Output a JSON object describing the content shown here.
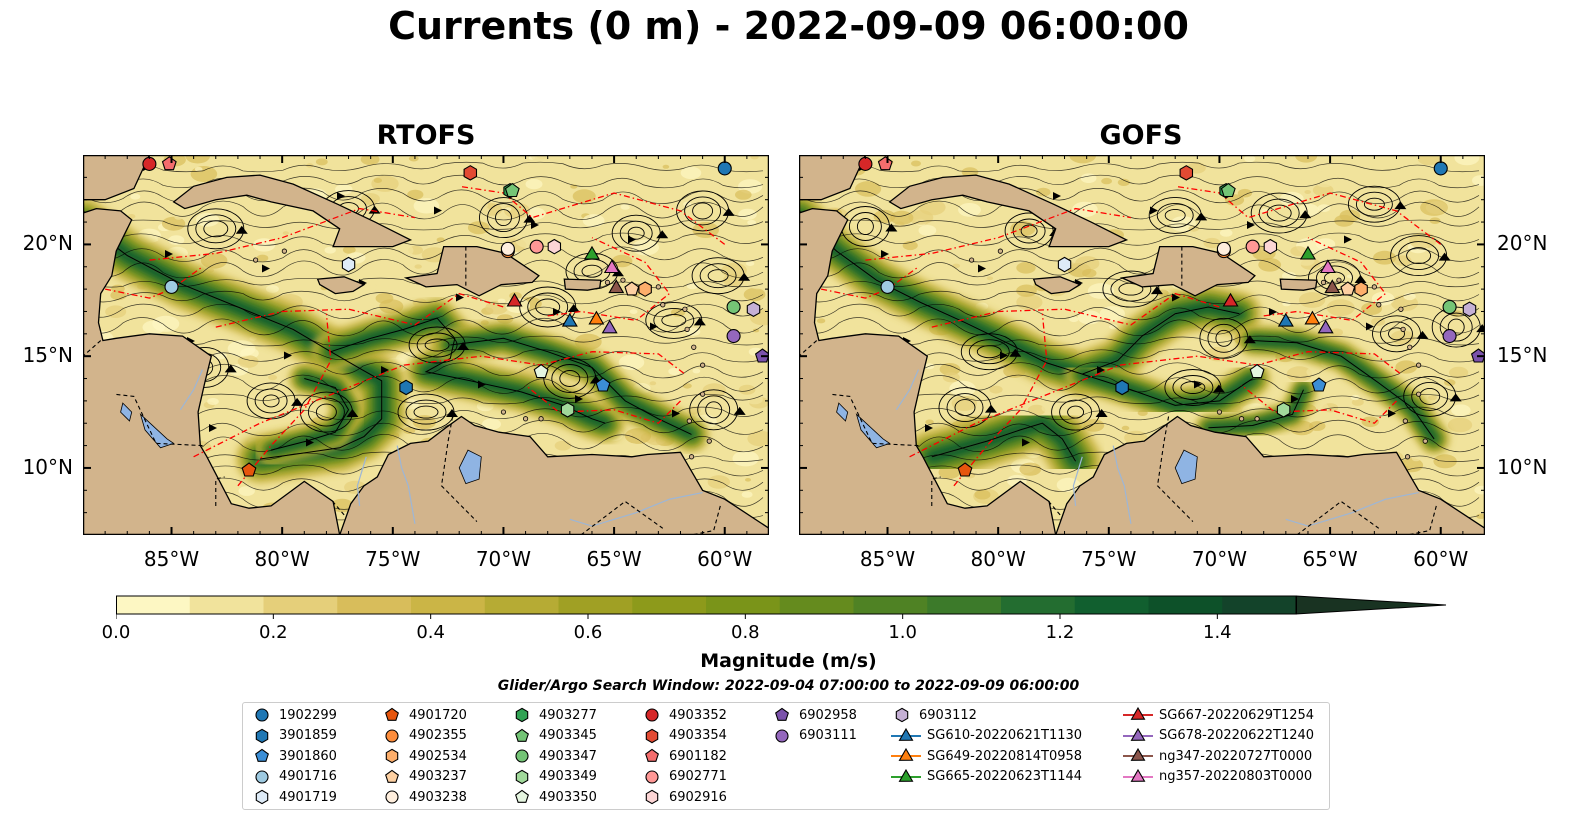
{
  "title": "Currents (0 m) - 2022-09-09 06:00:00",
  "chart_data": {
    "type": "heatmap",
    "title": "Currents (0 m) - 2022-09-09 06:00:00",
    "panels": [
      {
        "name": "RTOFS"
      },
      {
        "name": "GOFS"
      }
    ],
    "lon_range": [
      -89,
      -58
    ],
    "lat_range": [
      7,
      24
    ],
    "lon_ticks": [
      -85,
      -80,
      -75,
      -70,
      -65,
      -60
    ],
    "lon_tick_labels": [
      "85°W",
      "80°W",
      "75°W",
      "70°W",
      "65°W",
      "60°W"
    ],
    "lat_ticks": [
      10,
      15,
      20
    ],
    "lat_tick_labels": [
      "10°N",
      "15°N",
      "20°N"
    ],
    "colorbar": {
      "label": "Magnitude (m/s)",
      "range": [
        0,
        1.5
      ],
      "ticks": [
        0.0,
        0.2,
        0.4,
        0.6,
        0.8,
        1.0,
        1.2,
        1.4
      ],
      "tick_labels": [
        "0.0",
        "0.2",
        "0.4",
        "0.6",
        "0.8",
        "1.0",
        "1.2",
        "1.4"
      ],
      "levels": 16,
      "extend": "max",
      "colors": [
        "#fdf7c3",
        "#f1e39c",
        "#e5cf7a",
        "#d8bd5b",
        "#cbb546",
        "#b6ab34",
        "#a0a024",
        "#8d9a1b",
        "#7a9419",
        "#658b1e",
        "#4f8224",
        "#3c7a2a",
        "#236d30",
        "#115f2f",
        "#0d5129",
        "#13432a",
        "#193322"
      ]
    },
    "search_window": "Glider/Argo Search Window: 2022-09-04 07:00:00 to 2022-09-09 06:00:00",
    "legend_columns": 7,
    "legend": [
      {
        "name": "1902299",
        "marker": "circle",
        "color": "#1f77b4",
        "lon": -60,
        "lat": 23.4
      },
      {
        "name": "3901859",
        "marker": "hexagon",
        "color": "#1f77b4",
        "lon": -74.4,
        "lat": 13.6
      },
      {
        "name": "3901860",
        "marker": "pentagon",
        "color": "#3b8ed6",
        "lon": -65.5,
        "lat": 13.7
      },
      {
        "name": "4901716",
        "marker": "circle",
        "color": "#9ecae1",
        "lon": -85,
        "lat": 18.1
      },
      {
        "name": "4901719",
        "marker": "hexagon",
        "color": "#deebf7",
        "lon": -77,
        "lat": 19.1
      },
      {
        "name": "4901720",
        "marker": "pentagon",
        "color": "#e6550d",
        "lon": -81.5,
        "lat": 9.9
      },
      {
        "name": "4902355",
        "marker": "circle",
        "color": "#fd8d3c",
        "lon": -69.8,
        "lat": 19.7
      },
      {
        "name": "4902534",
        "marker": "hexagon",
        "color": "#fdae6b",
        "lon": -63.6,
        "lat": 18
      },
      {
        "name": "4903237",
        "marker": "pentagon",
        "color": "#fdd0a2",
        "lon": -64.2,
        "lat": 18
      },
      {
        "name": "4903238",
        "marker": "circle",
        "color": "#feeedd",
        "lon": -69.8,
        "lat": 19.8
      },
      {
        "name": "4903277",
        "marker": "hexagon",
        "color": "#31a354",
        "lon": -69.7,
        "lat": 22.4
      },
      {
        "name": "4903345",
        "marker": "pentagon",
        "color": "#74c476",
        "lon": -69.6,
        "lat": 22.4
      },
      {
        "name": "4903347",
        "marker": "circle",
        "color": "#74c476",
        "lon": -59.6,
        "lat": 17.2
      },
      {
        "name": "4903349",
        "marker": "hexagon",
        "color": "#a1d99b",
        "lon": -67.1,
        "lat": 12.6
      },
      {
        "name": "4903350",
        "marker": "pentagon",
        "color": "#e5f5e0",
        "lon": -68.3,
        "lat": 14.3
      },
      {
        "name": "4903352",
        "marker": "circle",
        "color": "#d62728",
        "lon": -86,
        "lat": 23.6
      },
      {
        "name": "4903354",
        "marker": "hexagon",
        "color": "#e34a33",
        "lon": -71.5,
        "lat": 23.2
      },
      {
        "name": "6901182",
        "marker": "pentagon",
        "color": "#f46d6d",
        "lon": -85.1,
        "lat": 23.6
      },
      {
        "name": "6902771",
        "marker": "circle",
        "color": "#ff9896",
        "lon": -68.5,
        "lat": 19.9
      },
      {
        "name": "6902916",
        "marker": "hexagon",
        "color": "#fcd5d5",
        "lon": -67.7,
        "lat": 19.9
      },
      {
        "name": "6902958",
        "marker": "pentagon",
        "color": "#7b52ab",
        "lon": -58.3,
        "lat": 15
      },
      {
        "name": "6903111",
        "marker": "circle",
        "color": "#9467bd",
        "lon": -59.6,
        "lat": 15.9
      },
      {
        "name": "6903112",
        "marker": "hexagon",
        "color": "#c5b0d5",
        "lon": -58.7,
        "lat": 17.1
      },
      {
        "name": "SG610-20220621T1130",
        "marker": "triangle",
        "color": "#1f77b4",
        "lon": -67,
        "lat": 16.6
      },
      {
        "name": "SG649-20220814T0958",
        "marker": "triangle",
        "color": "#ff7f0e",
        "lon": -65.8,
        "lat": 16.7
      },
      {
        "name": "SG665-20220623T1144",
        "marker": "triangle",
        "color": "#2ca02c",
        "lon": -66,
        "lat": 19.6
      },
      {
        "name": "SG667-20220629T1254",
        "marker": "triangle",
        "color": "#d62728",
        "lon": -69.5,
        "lat": 17.5
      },
      {
        "name": "SG678-20220622T1240",
        "marker": "triangle",
        "color": "#9467bd",
        "lon": -65.2,
        "lat": 16.3
      },
      {
        "name": "ng347-20220727T0000",
        "marker": "triangle",
        "color": "#8c564b",
        "lon": -64.9,
        "lat": 18.1
      },
      {
        "name": "ng357-20220803T0000",
        "marker": "triangle",
        "color": "#e377c2",
        "lon": -65.1,
        "lat": 19
      }
    ]
  },
  "colors": {
    "land": "#d2b48c",
    "lake": "#8fb4e3",
    "eez": "#ff0000",
    "border": "#000000"
  }
}
